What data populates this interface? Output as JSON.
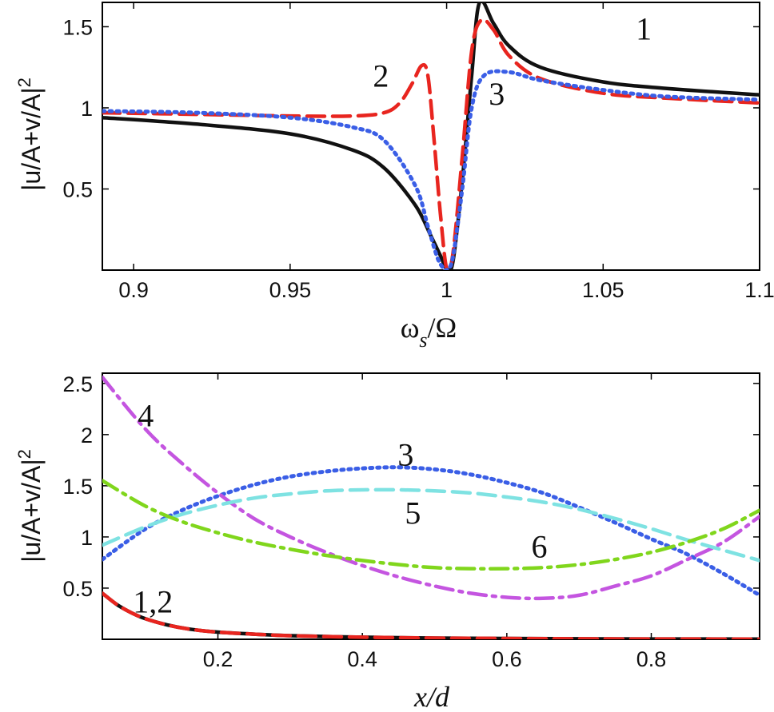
{
  "chart_data": [
    {
      "type": "line",
      "xlabel": "ω_s/Ω",
      "ylabel": "|u/A+v/A|²",
      "xlim": [
        0.89,
        1.1
      ],
      "ylim": [
        0,
        1.65
      ],
      "xticks": [
        0.9,
        0.95,
        1,
        1.05,
        1.1
      ],
      "xtick_labels": [
        "0.9",
        "0.95",
        "1",
        "1.05",
        "1.1"
      ],
      "yticks": [
        0.5,
        1,
        1.5
      ],
      "ytick_labels": [
        "0.5",
        "1",
        "1.5"
      ],
      "grid": false,
      "series": [
        {
          "label": "1",
          "color": "#111111",
          "style": "solid",
          "x": [
            0.89,
            0.92,
            0.95,
            0.97,
            0.98,
            0.99,
            0.995,
            0.998,
            1.0,
            1.002,
            1.005,
            1.008,
            1.0105,
            1.015,
            1.02,
            1.03,
            1.05,
            1.07,
            1.1
          ],
          "y": [
            0.94,
            0.9,
            0.84,
            0.74,
            0.63,
            0.4,
            0.21,
            0.09,
            0.01,
            0.05,
            0.55,
            1.2,
            1.65,
            1.52,
            1.38,
            1.25,
            1.16,
            1.12,
            1.08
          ]
        },
        {
          "label": "2",
          "color": "#e8251f",
          "style": "dashed",
          "x": [
            0.89,
            0.92,
            0.95,
            0.97,
            0.98,
            0.985,
            0.989,
            0.992,
            0.994,
            0.996,
            0.998,
            1.0,
            1.002,
            1.005,
            1.008,
            1.011,
            1.015,
            1.02,
            1.03,
            1.05,
            1.07,
            1.1
          ],
          "y": [
            0.97,
            0.96,
            0.95,
            0.95,
            0.97,
            1.03,
            1.15,
            1.26,
            1.2,
            0.8,
            0.35,
            0.01,
            0.1,
            0.7,
            1.35,
            1.54,
            1.48,
            1.32,
            1.18,
            1.09,
            1.06,
            1.03
          ]
        },
        {
          "label": "3",
          "color": "#3a5ee6",
          "style": "dotted",
          "x": [
            0.89,
            0.92,
            0.95,
            0.97,
            0.98,
            0.99,
            0.994,
            0.997,
            0.999,
            1.0,
            1.002,
            1.005,
            1.008,
            1.012,
            1.02,
            1.03,
            1.05,
            1.07,
            1.1
          ],
          "y": [
            0.98,
            0.97,
            0.94,
            0.88,
            0.8,
            0.52,
            0.27,
            0.08,
            0.01,
            0.0,
            0.08,
            0.5,
            1.0,
            1.2,
            1.22,
            1.17,
            1.11,
            1.07,
            1.05
          ]
        }
      ],
      "annotations": [
        {
          "text": "1",
          "x": 1.063,
          "y": 1.42
        },
        {
          "text": "2",
          "x": 0.979,
          "y": 1.13
        },
        {
          "text": "3",
          "x": 1.016,
          "y": 1.02
        }
      ]
    },
    {
      "type": "line",
      "xlabel": "x/d",
      "ylabel": "|u/A+v/A|²",
      "xlim": [
        0.04,
        0.95
      ],
      "ylim": [
        0,
        2.6
      ],
      "xticks": [
        0.2,
        0.4,
        0.6,
        0.8
      ],
      "xtick_labels": [
        "0.2",
        "0.4",
        "0.6",
        "0.8"
      ],
      "yticks": [
        0.5,
        1,
        1.5,
        2,
        2.5
      ],
      "ytick_labels": [
        "0.5",
        "1",
        "1.5",
        "2",
        "2.5"
      ],
      "grid": false,
      "series": [
        {
          "label": "1",
          "color": "#111111",
          "style": "solid",
          "x": [
            0.04,
            0.06,
            0.08,
            0.1,
            0.13,
            0.16,
            0.2,
            0.25,
            0.3,
            0.4,
            0.5,
            0.6,
            0.7,
            0.8,
            0.95
          ],
          "y": [
            0.45,
            0.34,
            0.26,
            0.2,
            0.14,
            0.1,
            0.07,
            0.05,
            0.035,
            0.02,
            0.012,
            0.008,
            0.005,
            0.003,
            0.002
          ]
        },
        {
          "label": "2",
          "color": "#e8251f",
          "style": "dashed",
          "x": [
            0.04,
            0.06,
            0.08,
            0.1,
            0.13,
            0.16,
            0.2,
            0.25,
            0.3,
            0.4,
            0.5,
            0.6,
            0.7,
            0.8,
            0.95
          ],
          "y": [
            0.45,
            0.34,
            0.26,
            0.2,
            0.14,
            0.1,
            0.07,
            0.05,
            0.035,
            0.02,
            0.012,
            0.008,
            0.005,
            0.003,
            0.002
          ]
        },
        {
          "label": "3",
          "color": "#3a5ee6",
          "style": "dotted",
          "x": [
            0.04,
            0.1,
            0.15,
            0.2,
            0.25,
            0.3,
            0.35,
            0.4,
            0.45,
            0.5,
            0.55,
            0.6,
            0.65,
            0.7,
            0.75,
            0.8,
            0.85,
            0.9,
            0.95
          ],
          "y": [
            0.78,
            1.08,
            1.26,
            1.4,
            1.51,
            1.59,
            1.64,
            1.67,
            1.68,
            1.66,
            1.61,
            1.53,
            1.43,
            1.29,
            1.14,
            0.98,
            0.83,
            0.64,
            0.43
          ]
        },
        {
          "label": "4",
          "color": "#c455e0",
          "style": "dashdot",
          "x": [
            0.04,
            0.1,
            0.15,
            0.2,
            0.25,
            0.3,
            0.35,
            0.4,
            0.45,
            0.5,
            0.55,
            0.6,
            0.65,
            0.7,
            0.75,
            0.8,
            0.85,
            0.9,
            0.95
          ],
          "y": [
            2.56,
            2.05,
            1.72,
            1.43,
            1.18,
            1.0,
            0.85,
            0.72,
            0.61,
            0.52,
            0.45,
            0.41,
            0.4,
            0.43,
            0.52,
            0.62,
            0.78,
            0.95,
            1.2
          ]
        },
        {
          "label": "5",
          "color": "#7ee2e2",
          "style": "dashed",
          "x": [
            0.04,
            0.1,
            0.15,
            0.2,
            0.25,
            0.3,
            0.35,
            0.4,
            0.45,
            0.5,
            0.55,
            0.6,
            0.65,
            0.7,
            0.75,
            0.8,
            0.85,
            0.9,
            0.95
          ],
          "y": [
            0.92,
            1.1,
            1.22,
            1.31,
            1.38,
            1.42,
            1.45,
            1.46,
            1.46,
            1.45,
            1.43,
            1.39,
            1.34,
            1.27,
            1.18,
            1.08,
            0.97,
            0.87,
            0.77
          ]
        },
        {
          "label": "6",
          "color": "#80d61c",
          "style": "dashdot",
          "x": [
            0.04,
            0.1,
            0.15,
            0.2,
            0.25,
            0.3,
            0.35,
            0.4,
            0.45,
            0.5,
            0.55,
            0.6,
            0.65,
            0.7,
            0.75,
            0.8,
            0.85,
            0.9,
            0.95
          ],
          "y": [
            1.55,
            1.3,
            1.15,
            1.04,
            0.95,
            0.88,
            0.82,
            0.77,
            0.73,
            0.7,
            0.69,
            0.69,
            0.7,
            0.73,
            0.78,
            0.85,
            0.95,
            1.08,
            1.26
          ]
        }
      ],
      "annotations": [
        {
          "text": "4",
          "x": 0.1,
          "y": 2.08
        },
        {
          "text": "3",
          "x": 0.46,
          "y": 1.7
        },
        {
          "text": "5",
          "x": 0.47,
          "y": 1.13
        },
        {
          "text": "6",
          "x": 0.645,
          "y": 0.8
        },
        {
          "text": "1,2",
          "x": 0.11,
          "y": 0.26
        }
      ]
    }
  ]
}
